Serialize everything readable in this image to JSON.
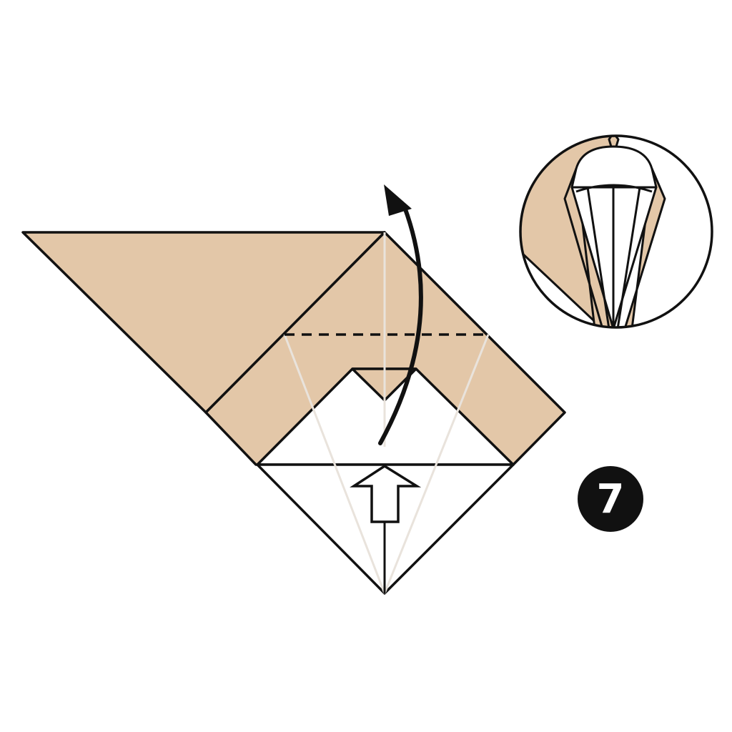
{
  "step": {
    "number": "7"
  },
  "colors": {
    "paper": "#e3c7a8",
    "outline": "#111111",
    "crease": "#eeeae4",
    "background": "#ffffff",
    "badge": "#111111",
    "badge_text": "#ffffff"
  },
  "icons": {
    "fold_arrow": "curved-arrow-icon",
    "push_arrow": "hollow-up-arrow-icon",
    "result_preview": "zoom-circle-icon"
  }
}
